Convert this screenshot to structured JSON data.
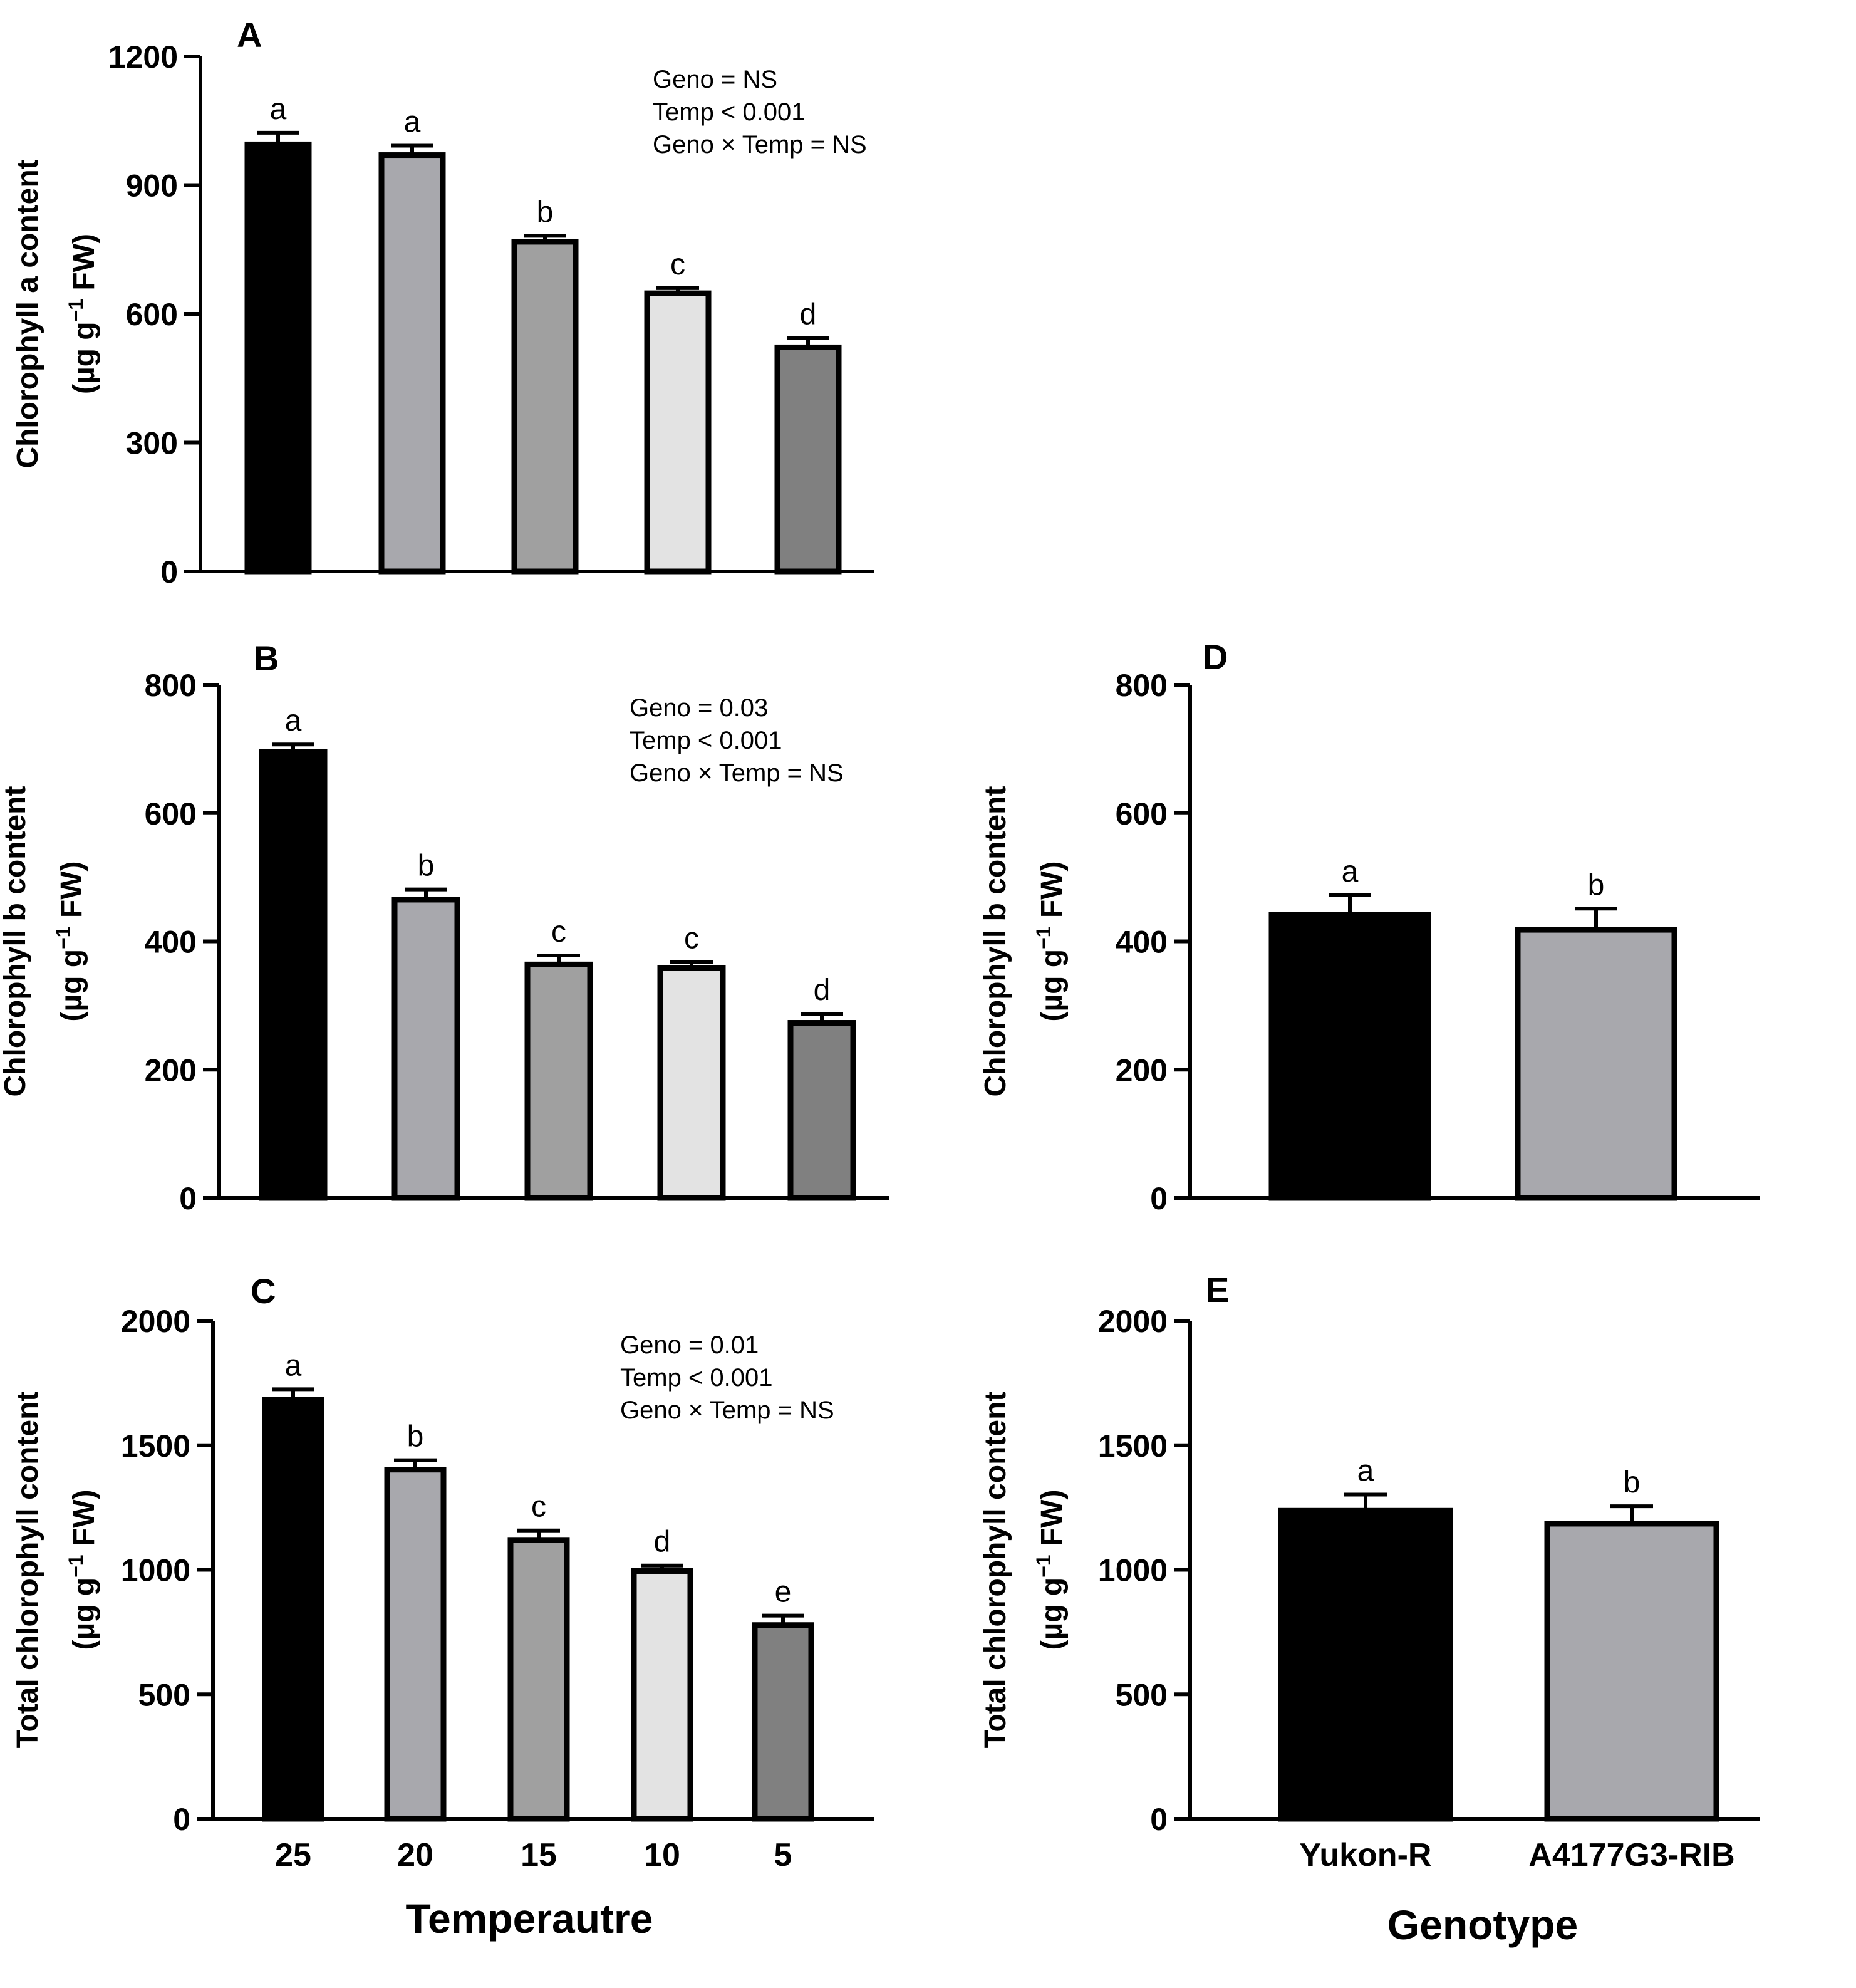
{
  "chart_data": [
    {
      "type": "bar",
      "panel_label": "A",
      "categories": [
        "25",
        "20",
        "15",
        "10",
        "5"
      ],
      "values": [
        995,
        970,
        768,
        648,
        522
      ],
      "errors": [
        27,
        22,
        14,
        12,
        22
      ],
      "letters": [
        "a",
        "a",
        "b",
        "c",
        "d"
      ],
      "colors": [
        "#000000",
        "#a8a8ad",
        "#a0a0a0",
        "#e3e3e3",
        "#808080"
      ],
      "ylabel_line1": "Chlorophyll a content",
      "ylabel_line2_prefix": "(µg g",
      "ylabel_line2_exp": "−1",
      "ylabel_line2_suffix": " FW)",
      "ylim": [
        0,
        1200
      ],
      "yticks": [
        0,
        300,
        600,
        900,
        1200
      ],
      "stats": [
        "Geno = NS",
        "Temp < 0.001",
        "Geno × Temp = NS"
      ],
      "show_xticklabels": false
    },
    {
      "type": "bar",
      "panel_label": "B",
      "categories": [
        "25",
        "20",
        "15",
        "10",
        "5"
      ],
      "values": [
        695,
        465,
        364,
        358,
        273
      ],
      "errors": [
        12,
        16,
        14,
        10,
        14
      ],
      "letters": [
        "a",
        "b",
        "c",
        "c",
        "d"
      ],
      "colors": [
        "#000000",
        "#a8a8ad",
        "#a0a0a0",
        "#e3e3e3",
        "#808080"
      ],
      "ylabel_line1": "Chlorophyll b content",
      "ylabel_line2_prefix": "(µg g",
      "ylabel_line2_exp": "−1",
      "ylabel_line2_suffix": " FW)",
      "ylim": [
        0,
        800
      ],
      "yticks": [
        0,
        200,
        400,
        600,
        800
      ],
      "stats": [
        "Geno = 0.03",
        "Temp < 0.001",
        "Geno × Temp = NS"
      ],
      "show_xticklabels": false
    },
    {
      "type": "bar",
      "panel_label": "C",
      "categories": [
        "25",
        "20",
        "15",
        "10",
        "5"
      ],
      "values": [
        1683,
        1402,
        1120,
        995,
        778
      ],
      "errors": [
        42,
        38,
        38,
        22,
        38
      ],
      "letters": [
        "a",
        "b",
        "c",
        "d",
        "e"
      ],
      "colors": [
        "#000000",
        "#a8a8ad",
        "#a0a0a0",
        "#e3e3e3",
        "#808080"
      ],
      "ylabel_line1": "Total chlorophyll content",
      "ylabel_line2_prefix": "(µg g",
      "ylabel_line2_exp": "−1",
      "ylabel_line2_suffix": " FW)",
      "ylim": [
        0,
        2000
      ],
      "yticks": [
        0,
        500,
        1000,
        1500,
        2000
      ],
      "stats": [
        "Geno = 0.01",
        "Temp < 0.001",
        "Geno × Temp = NS"
      ],
      "show_xticklabels": true,
      "xlabel": "Temperautre"
    },
    {
      "type": "bar",
      "panel_label": "D",
      "categories": [
        "Yukon-R",
        "A4177G3-RIB"
      ],
      "values": [
        442,
        418
      ],
      "errors": [
        30,
        33
      ],
      "letters": [
        "a",
        "b"
      ],
      "colors": [
        "#000000",
        "#a8a8ad"
      ],
      "ylabel_line1": "Chlorophyll b content",
      "ylabel_line2_prefix": "(µg g",
      "ylabel_line2_exp": "−1",
      "ylabel_line2_suffix": " FW)",
      "ylim": [
        0,
        800
      ],
      "yticks": [
        0,
        200,
        400,
        600,
        800
      ],
      "stats": [],
      "show_xticklabels": false
    },
    {
      "type": "bar",
      "panel_label": "E",
      "categories": [
        "Yukon-R",
        "A4177G3-RIB"
      ],
      "values": [
        1237,
        1185
      ],
      "errors": [
        65,
        70
      ],
      "letters": [
        "a",
        "b"
      ],
      "colors": [
        "#000000",
        "#a8a8ad"
      ],
      "ylabel_line1": "Total chlorophyll content",
      "ylabel_line2_prefix": "(µg g",
      "ylabel_line2_exp": "−1",
      "ylabel_line2_suffix": " FW)",
      "ylim": [
        0,
        2000
      ],
      "yticks": [
        0,
        500,
        1000,
        1500,
        2000
      ],
      "stats": [],
      "show_xticklabels": true,
      "xlabel": "Genotype"
    }
  ]
}
